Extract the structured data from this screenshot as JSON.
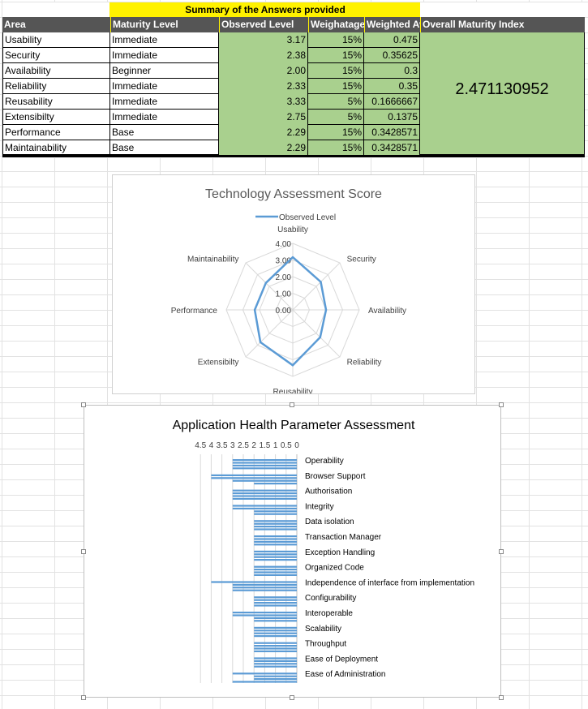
{
  "table": {
    "title": "Summary of the Answers provided",
    "headers": [
      "Area",
      "Maturity Level",
      "Observed Level",
      "Weighatage",
      "Weighted Avg",
      "Overall Maturity Index"
    ],
    "rows": [
      {
        "area": "Usability",
        "maturity": "Immediate",
        "observed": "3.17",
        "weight": "15%",
        "weighted": "0.475"
      },
      {
        "area": "Security",
        "maturity": "Immediate",
        "observed": "2.38",
        "weight": "15%",
        "weighted": "0.35625"
      },
      {
        "area": "Availability",
        "maturity": "Beginner",
        "observed": "2.00",
        "weight": "15%",
        "weighted": "0.3"
      },
      {
        "area": "Reliability",
        "maturity": "Immediate",
        "observed": "2.33",
        "weight": "15%",
        "weighted": "0.35"
      },
      {
        "area": "Reusability",
        "maturity": "Immediate",
        "observed": "3.33",
        "weight": "5%",
        "weighted": "0.1666667"
      },
      {
        "area": "Extensibilty",
        "maturity": "Immediate",
        "observed": "2.75",
        "weight": "5%",
        "weighted": "0.1375"
      },
      {
        "area": "Performance",
        "maturity": "Base",
        "observed": "2.29",
        "weight": "15%",
        "weighted": "0.3428571"
      },
      {
        "area": "Maintainability",
        "maturity": "Base",
        "observed": "2.29",
        "weight": "15%",
        "weighted": "0.3428571"
      }
    ],
    "overall_index": "2.471130952",
    "colors": {
      "header_bg": "#555555",
      "title_bg": "#fff200",
      "green": "#a9d08e"
    }
  },
  "chart_data": [
    {
      "type": "radar",
      "title": "Technology Assessment Score",
      "legend": {
        "position": "top",
        "entries": [
          "Observed Level"
        ]
      },
      "axes": [
        "Usability",
        "Security",
        "Availability",
        "Reliability",
        "Reusability",
        "Extensibilty",
        "Performance",
        "Maintainability"
      ],
      "series": [
        {
          "name": "Observed Level",
          "values": [
            3.17,
            2.38,
            2.0,
            2.33,
            3.33,
            2.75,
            2.29,
            2.29
          ],
          "color": "#5b9bd5"
        }
      ],
      "rlim": [
        0,
        4
      ],
      "ticks": [
        "0.00",
        "1.00",
        "2.00",
        "3.00",
        "4.00"
      ]
    },
    {
      "type": "bar",
      "orientation": "horizontal",
      "x_reversed": true,
      "title": "Application Health Parameter Assessment",
      "xlim": [
        0,
        4.5
      ],
      "x_ticks": [
        "4.5",
        "4",
        "3.5",
        "3",
        "2.5",
        "2",
        "1.5",
        "1",
        "0.5",
        "0"
      ],
      "color": "#5b9bd5",
      "categories": [
        "Operability",
        "Browser Support",
        "Authorisation",
        "Integrity",
        "Data isolation",
        "Transaction Manager",
        "Exception Handling",
        "Organized Code",
        "Independence of interface from implementation",
        "Configurability",
        "Interoperable",
        "Scalability",
        "Throughput",
        "Ease of Deployment",
        "Ease of Administration"
      ],
      "values": [
        [
          3,
          3,
          3,
          3
        ],
        [
          4,
          4,
          3,
          2
        ],
        [
          3,
          3,
          3,
          3
        ],
        [
          3,
          3,
          2,
          2
        ],
        [
          2,
          2,
          2,
          2
        ],
        [
          2,
          2,
          2,
          2
        ],
        [
          2,
          2,
          2,
          2
        ],
        [
          2,
          2,
          2,
          2
        ],
        [
          4,
          3,
          3,
          3
        ],
        [
          2,
          2,
          2,
          2
        ],
        [
          3,
          3,
          2,
          2
        ],
        [
          2,
          2,
          2,
          2
        ],
        [
          2,
          2,
          2,
          2
        ],
        [
          2,
          2,
          2,
          2
        ],
        [
          3,
          2,
          2,
          3
        ]
      ]
    }
  ]
}
